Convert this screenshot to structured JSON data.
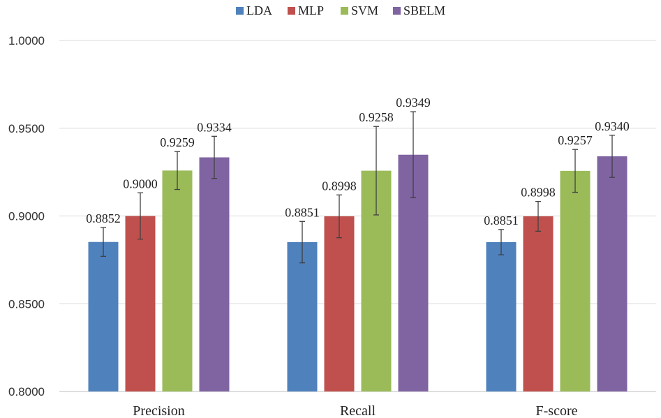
{
  "chart_data": {
    "type": "bar",
    "title": "",
    "xlabel": "",
    "ylabel": "",
    "categories": [
      "Precision",
      "Recall",
      "F-score"
    ],
    "ylim": [
      0.8,
      1.0
    ],
    "yticks": [
      "0.8000",
      "0.8500",
      "0.9000",
      "0.9500",
      "1.0000"
    ],
    "yticks_values": [
      0.8,
      0.85,
      0.9,
      0.95,
      1.0
    ],
    "grid": true,
    "legend_position": "top-center",
    "series": [
      {
        "name": "LDA",
        "color": "#4F81BD",
        "values": [
          0.8852,
          0.8851,
          0.8851
        ],
        "labels": [
          "0.8852",
          "0.8851",
          "0.8851"
        ],
        "errors": [
          0.0082,
          0.0118,
          0.0072
        ]
      },
      {
        "name": "MLP",
        "color": "#C0504D",
        "values": [
          0.9,
          0.8998,
          0.8998
        ],
        "labels": [
          "0.9000",
          "0.8998",
          "0.8998"
        ],
        "errors": [
          0.0132,
          0.0122,
          0.0085
        ]
      },
      {
        "name": "SVM",
        "color": "#9BBB59",
        "values": [
          0.9259,
          0.9258,
          0.9257
        ],
        "labels": [
          "0.9259",
          "0.9258",
          "0.9257"
        ],
        "errors": [
          0.0108,
          0.0252,
          0.0122
        ]
      },
      {
        "name": "SBELM",
        "color": "#8064A2",
        "values": [
          0.9334,
          0.9349,
          0.934
        ],
        "labels": [
          "0.9334",
          "0.9349",
          "0.9340"
        ],
        "errors": [
          0.012,
          0.0245,
          0.012
        ]
      }
    ]
  }
}
